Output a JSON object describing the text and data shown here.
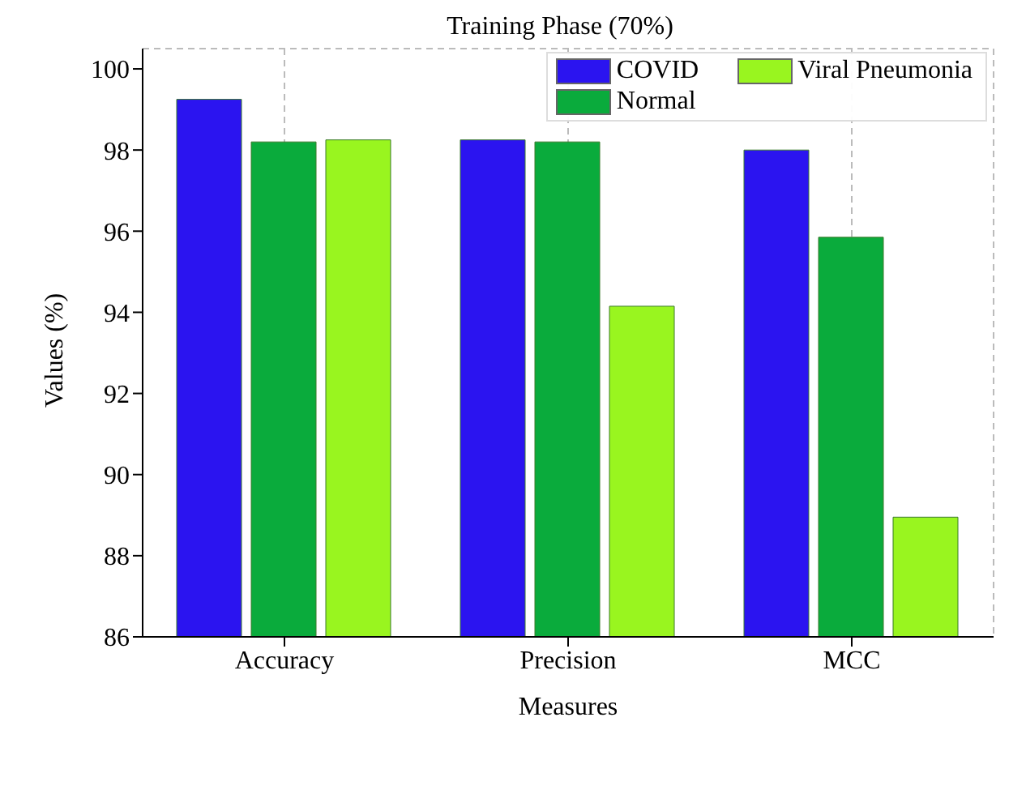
{
  "chart_data": {
    "type": "bar",
    "title": "Training Phase (70%)",
    "xlabel": "Measures",
    "ylabel": "Values (%)",
    "categories": [
      "Accuracy",
      "Precision",
      "MCC"
    ],
    "series": [
      {
        "name": "COVID",
        "color": "#2b14f0",
        "values": [
          99.25,
          98.25,
          98.0
        ]
      },
      {
        "name": "Normal",
        "color": "#0aab3c",
        "values": [
          98.2,
          98.2,
          95.85
        ]
      },
      {
        "name": "Viral Pneumonia",
        "color": "#99f51f",
        "values": [
          98.25,
          94.15,
          88.95
        ]
      }
    ],
    "ylim": [
      86,
      100.5
    ],
    "yticks": [
      86,
      88,
      90,
      92,
      94,
      96,
      98,
      100
    ],
    "grid": true,
    "legend": "top right"
  }
}
